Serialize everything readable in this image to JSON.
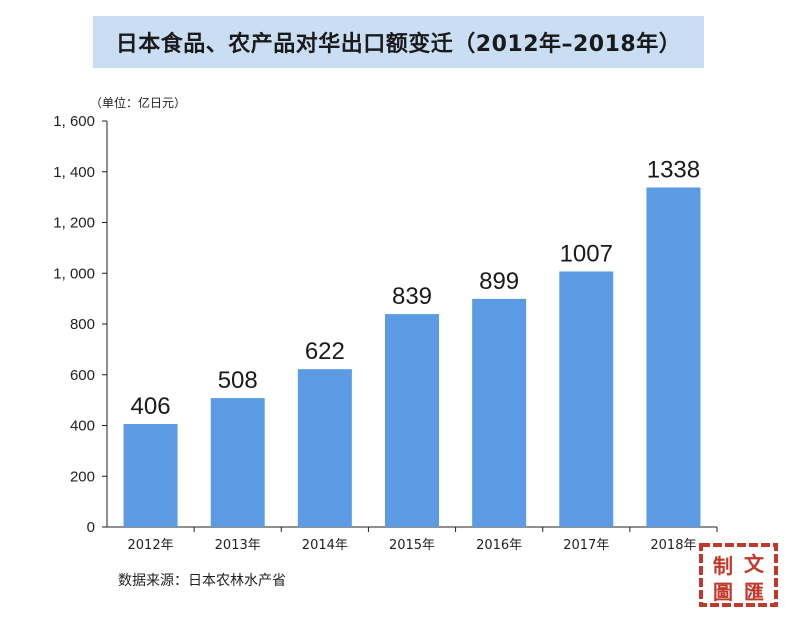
{
  "chart_data": {
    "type": "bar",
    "title": "日本食品、农产品对华出口额变迁（2012年–2018年）",
    "unit_label": "（单位：亿日元）",
    "categories": [
      "2012年",
      "2013年",
      "2014年",
      "2015年",
      "2016年",
      "2017年",
      "2018年"
    ],
    "values": [
      406,
      508,
      622,
      839,
      899,
      1007,
      1338
    ],
    "value_labels": [
      "406",
      "508",
      "622",
      "839",
      "899",
      "1007",
      "1338"
    ],
    "ylim": [
      0,
      1600
    ],
    "yticks": [
      0,
      200,
      400,
      600,
      800,
      1000,
      1200,
      1400,
      1600
    ],
    "ytick_labels": [
      "0",
      "200",
      "400",
      "600",
      "800",
      "1, 000",
      "1, 200",
      "1, 400",
      "1, 600"
    ],
    "grid": false,
    "bar_color": "#5b9be3",
    "source": "数据来源：日本农林水产省"
  },
  "stamp": {
    "chars": [
      "制",
      "文",
      "圖",
      "匯"
    ],
    "color": "#c0392b"
  }
}
